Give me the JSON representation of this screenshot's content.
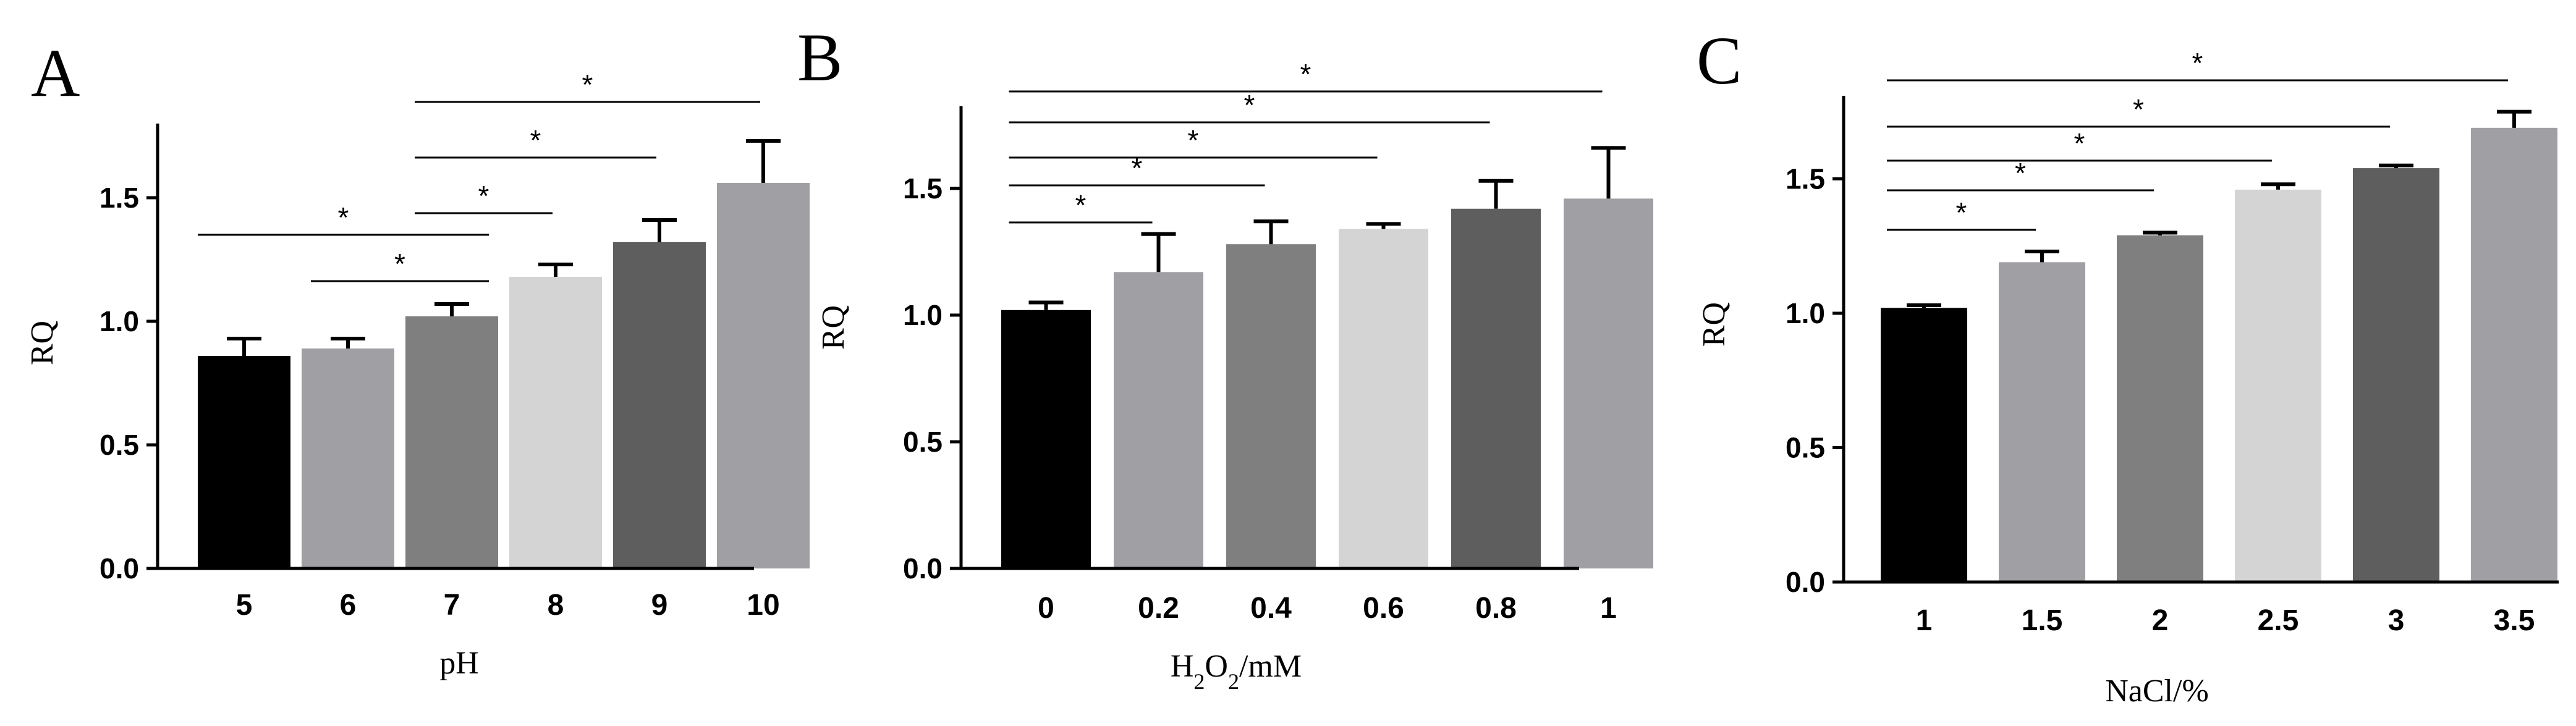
{
  "chart_data": [
    {
      "type": "bar",
      "panel": "A",
      "xlabel": "pH",
      "ylabel": "RQ",
      "ylim": [
        0,
        1.8
      ],
      "yticks": [
        "0.0",
        "0.5",
        "1.0",
        "1.5"
      ],
      "categories": [
        "5",
        "6",
        "7",
        "8",
        "9",
        "10"
      ],
      "values": [
        0.86,
        0.89,
        1.02,
        1.18,
        1.32,
        1.56
      ],
      "errors": [
        0.07,
        0.04,
        0.05,
        0.05,
        0.09,
        0.17
      ],
      "colors": [
        "#000000",
        "#a0a0a4",
        "#7f7f7f",
        "#d4d4d4",
        "#5e5e5e",
        "#a0a0a4"
      ],
      "significance": [
        {
          "from": 0,
          "to": 2,
          "label": "*"
        },
        {
          "from": 1,
          "to": 2,
          "label": "*"
        },
        {
          "from": 2,
          "to": 3,
          "label": "*"
        },
        {
          "from": 2,
          "to": 4,
          "label": "*"
        },
        {
          "from": 2,
          "to": 5,
          "label": "*"
        }
      ]
    },
    {
      "type": "bar",
      "panel": "B",
      "xlabel": "H2O2/mM",
      "ylabel": "RQ",
      "ylim": [
        0,
        1.8
      ],
      "yticks": [
        "0.0",
        "0.5",
        "1.0",
        "1.5"
      ],
      "categories": [
        "0",
        "0.2",
        "0.4",
        "0.6",
        "0.8",
        "1"
      ],
      "values": [
        1.02,
        1.17,
        1.28,
        1.34,
        1.42,
        1.46
      ],
      "errors": [
        0.03,
        0.15,
        0.09,
        0.02,
        0.11,
        0.2
      ],
      "colors": [
        "#000000",
        "#a0a0a4",
        "#7f7f7f",
        "#d4d4d4",
        "#5e5e5e",
        "#a0a0a4"
      ],
      "significance": [
        {
          "from": 0,
          "to": 1,
          "label": "*"
        },
        {
          "from": 0,
          "to": 2,
          "label": "*"
        },
        {
          "from": 0,
          "to": 3,
          "label": "*"
        },
        {
          "from": 0,
          "to": 4,
          "label": "*"
        },
        {
          "from": 0,
          "to": 5,
          "label": "*"
        }
      ]
    },
    {
      "type": "bar",
      "panel": "C",
      "xlabel": "NaCl/%",
      "ylabel": "RQ",
      "ylim": [
        0,
        1.8
      ],
      "yticks": [
        "0.0",
        "0.5",
        "1.0",
        "1.5"
      ],
      "categories": [
        "1",
        "1.5",
        "2",
        "2.5",
        "3",
        "3.5"
      ],
      "values": [
        1.02,
        1.19,
        1.29,
        1.46,
        1.54,
        1.69
      ],
      "errors": [
        0.01,
        0.04,
        0.01,
        0.02,
        0.01,
        0.06
      ],
      "colors": [
        "#000000",
        "#a0a0a4",
        "#7f7f7f",
        "#d4d4d4",
        "#5e5e5e",
        "#a0a0a4"
      ],
      "significance": [
        {
          "from": 0,
          "to": 1,
          "label": "*"
        },
        {
          "from": 0,
          "to": 2,
          "label": "*"
        },
        {
          "from": 0,
          "to": 3,
          "label": "*"
        },
        {
          "from": 0,
          "to": 4,
          "label": "*"
        },
        {
          "from": 0,
          "to": 5,
          "label": "*"
        }
      ]
    }
  ]
}
